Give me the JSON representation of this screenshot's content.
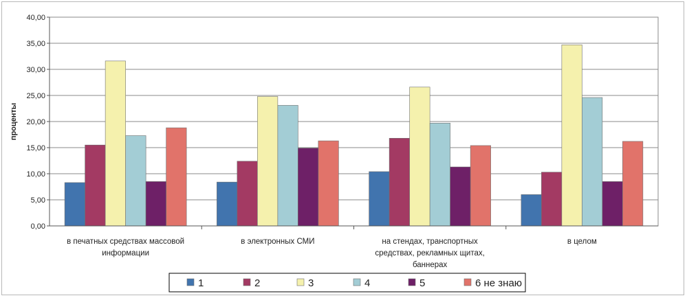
{
  "chart_data": {
    "type": "bar",
    "title": "",
    "ylabel": "проценты",
    "xlabel": "",
    "ylim": [
      0,
      40
    ],
    "yticks": [
      0,
      5,
      10,
      15,
      20,
      25,
      30,
      35,
      40
    ],
    "yticks_labels": [
      "0,00",
      "5,00",
      "10,00",
      "15,00",
      "20,00",
      "25,00",
      "30,00",
      "35,00",
      "40,00"
    ],
    "grid": true,
    "legend_position": "bottom",
    "categories": [
      [
        "в печатных средствах массовой",
        "информации"
      ],
      [
        "в электронных СМИ"
      ],
      [
        "на стендах, транспортных",
        "средствах, рекламных щитах,",
        "баннерах"
      ],
      [
        "в целом"
      ]
    ],
    "series": [
      {
        "name": "1",
        "color": "#4174ae",
        "values": [
          8.3,
          8.4,
          10.4,
          6.0
        ]
      },
      {
        "name": "2",
        "color": "#a33a63",
        "values": [
          15.5,
          12.4,
          16.8,
          10.3
        ]
      },
      {
        "name": "3",
        "color": "#f5f1ad",
        "values": [
          31.6,
          24.8,
          26.6,
          34.7
        ]
      },
      {
        "name": "4",
        "color": "#a3cdd5",
        "values": [
          17.3,
          23.1,
          19.7,
          24.6
        ]
      },
      {
        "name": "5",
        "color": "#6e2067",
        "values": [
          8.5,
          14.9,
          11.3,
          8.5
        ]
      },
      {
        "name": "6 не знаю",
        "color": "#e1736a",
        "values": [
          18.8,
          16.3,
          15.4,
          16.2
        ]
      }
    ]
  }
}
